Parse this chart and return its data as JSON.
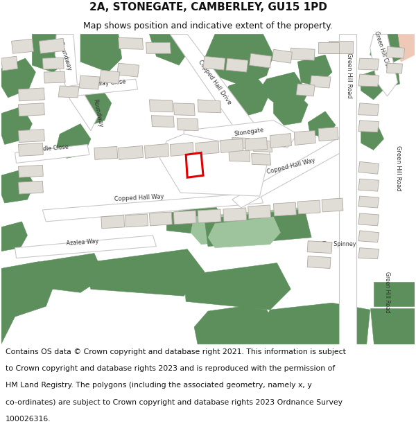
{
  "title": "2A, STONEGATE, CAMBERLEY, GU15 1PD",
  "subtitle": "Map shows position and indicative extent of the property.",
  "copyright_lines": [
    "Contains OS data © Crown copyright and database right 2021. This information is subject",
    "to Crown copyright and database rights 2023 and is reproduced with the permission of",
    "HM Land Registry. The polygons (including the associated geometry, namely x, y",
    "co-ordinates) are subject to Crown copyright and database rights 2023 Ordnance Survey",
    "100026316."
  ],
  "bg": "#f5f2ee",
  "road_fill": "#ffffff",
  "road_edge": "#c8c8c8",
  "bld_fill": "#e0dcd6",
  "bld_edge": "#b0a8a0",
  "grn": "#5c8f5c",
  "grn_lt": "#9ec49e",
  "red": "#e00000",
  "title_fs": 11,
  "sub_fs": 9,
  "copy_fs": 7.8,
  "lbl_fs": 6.5
}
